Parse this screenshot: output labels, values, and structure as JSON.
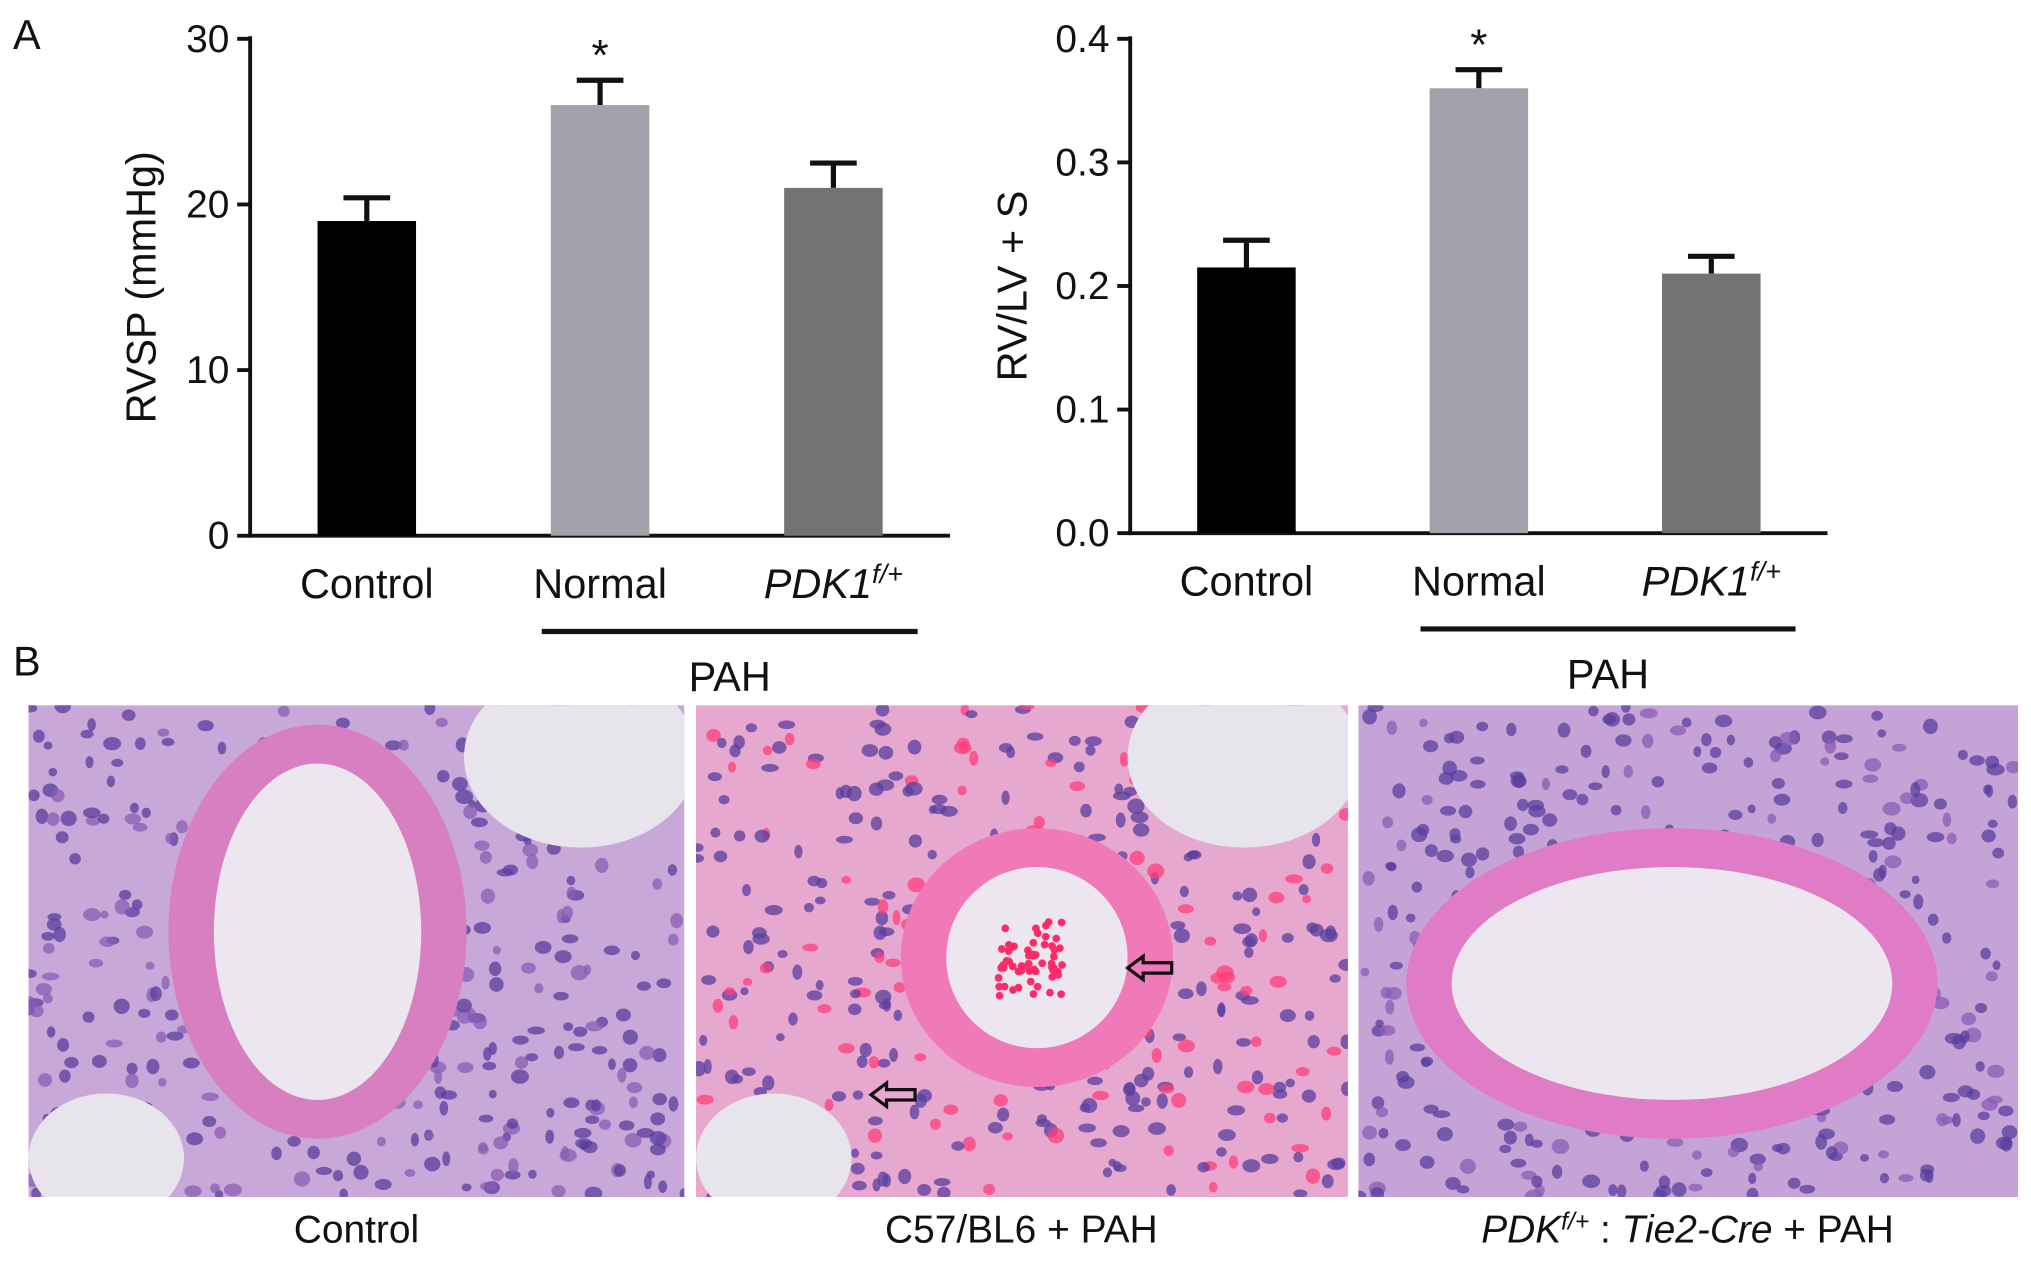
{
  "panel_labels": [
    "A",
    "B"
  ],
  "chart_data": [
    {
      "type": "bar",
      "y_label": "RVSP (mmHg)",
      "categories": [
        "Control",
        "Normal",
        {
          "label": "PDK1",
          "sup": "f/+"
        }
      ],
      "series": [
        {
          "colors": [
            "#000000",
            "#a2a2aa",
            "#737373"
          ],
          "values": [
            19,
            26,
            21
          ],
          "errors": [
            1.4,
            1.5,
            1.5
          ]
        }
      ],
      "ylim": [
        0,
        30
      ],
      "yticks": [
        0,
        10,
        20,
        30
      ],
      "annotations": [
        {
          "text": "*",
          "category": "Normal"
        }
      ],
      "group_label": "PAH"
    },
    {
      "type": "bar",
      "y_label": "RV/LV + S",
      "categories": [
        "Control",
        "Normal",
        {
          "label": "PDK1",
          "sup": "f/+"
        }
      ],
      "series": [
        {
          "colors": [
            "#000000",
            "#a2a2aa",
            "#737373"
          ],
          "values": [
            0.215,
            0.36,
            0.21
          ],
          "errors": [
            0.022,
            0.015,
            0.014
          ]
        }
      ],
      "ylim": [
        0,
        0.4
      ],
      "yticks": [
        {
          "value": 0,
          "label": "0.0"
        },
        0.1,
        0.2,
        0.3,
        0.4
      ],
      "annotations": [
        {
          "text": "*",
          "category": "Normal"
        }
      ],
      "group_label": "PAH"
    }
  ],
  "images": [
    {
      "caption": [
        {
          "text": "Control"
        }
      ]
    },
    {
      "caption": [
        {
          "text": "C57/BL6 + PAH"
        }
      ]
    },
    {
      "caption": [
        {
          "text": "PDK",
          "italic": true
        },
        {
          "text": "f/+",
          "italic": true,
          "sup": true
        },
        {
          "text": " : "
        },
        {
          "text": "Tie2-Cre",
          "italic": true
        },
        {
          "text": " + PAH"
        }
      ]
    }
  ]
}
